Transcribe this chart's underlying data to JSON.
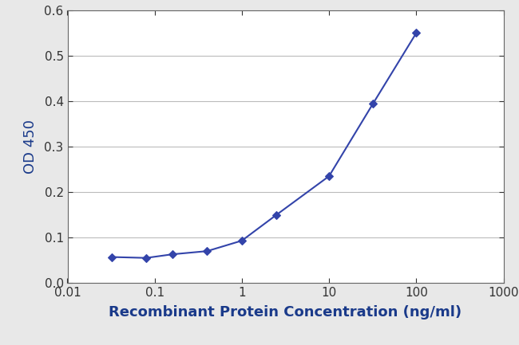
{
  "x": [
    0.032,
    0.08,
    0.16,
    0.4,
    1.0,
    2.5,
    10.0,
    32.0,
    100.0
  ],
  "y": [
    0.057,
    0.055,
    0.063,
    0.07,
    0.093,
    0.15,
    0.235,
    0.395,
    0.55
  ],
  "line_color": "#3344aa",
  "marker": "D",
  "marker_size": 5,
  "marker_facecolor": "#3344aa",
  "line_width": 1.5,
  "xlabel": "Recombinant Protein Concentration (ng/ml)",
  "ylabel": "OD 450",
  "xlim": [
    0.01,
    1000
  ],
  "ylim": [
    0.0,
    0.6
  ],
  "yticks": [
    0.0,
    0.1,
    0.2,
    0.3,
    0.4,
    0.5,
    0.6
  ],
  "xtick_vals": [
    0.01,
    0.1,
    1,
    10,
    100,
    1000
  ],
  "xtick_labels": [
    "0.01",
    "0.1",
    "1",
    "10",
    "100",
    "1000"
  ],
  "grid_color": "#bbbbbb",
  "background_color": "#e8e8e8",
  "plot_bg_color": "#ffffff",
  "xlabel_fontsize": 13,
  "ylabel_fontsize": 13,
  "tick_fontsize": 11,
  "xlabel_color": "#1a3a8a",
  "ylabel_color": "#1a3a8a",
  "spine_color": "#666666",
  "tick_color": "#333333"
}
